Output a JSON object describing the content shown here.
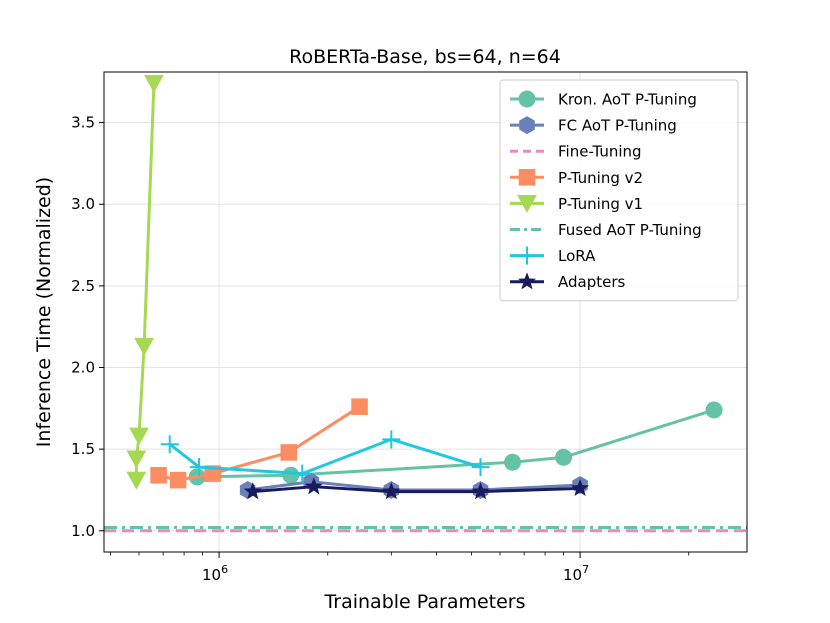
{
  "chart_data": {
    "type": "line",
    "title": "RoBERTa-Base, bs=64, n=64",
    "xlabel": "Trainable Parameters",
    "ylabel": "Inference Time (Normalized)",
    "xscale": "log",
    "xlim": [
      480000,
      29000000
    ],
    "ylim": [
      0.87,
      3.81
    ],
    "grid": true,
    "legend_position": "top-right",
    "x_ticks": [
      {
        "value": 1000000,
        "base": "10",
        "exp": "6"
      },
      {
        "value": 10000000,
        "base": "10",
        "exp": "7"
      }
    ],
    "y_ticks": [
      "1.0",
      "1.5",
      "2.0",
      "2.5",
      "3.0",
      "3.5"
    ],
    "series": [
      {
        "name": "Kron. AoT P-Tuning",
        "color": "#66c2a5",
        "marker": "circle",
        "line": "solid",
        "points": [
          [
            870000,
            1.33
          ],
          [
            1580000,
            1.34
          ],
          [
            6500000,
            1.42
          ],
          [
            9000000,
            1.45
          ],
          [
            23500000,
            1.74
          ]
        ]
      },
      {
        "name": "FC AoT P-Tuning",
        "color": "#6a80b8",
        "marker": "hexagon",
        "line": "solid",
        "points": [
          [
            1200000,
            1.25
          ],
          [
            1800000,
            1.3
          ],
          [
            3000000,
            1.25
          ],
          [
            5300000,
            1.25
          ],
          [
            10000000,
            1.28
          ]
        ]
      },
      {
        "name": "Fine-Tuning",
        "color": "#e78ac3",
        "marker": "none",
        "line": "dashed",
        "points": [
          [
            480000,
            1.0
          ],
          [
            29000000,
            1.0
          ]
        ]
      },
      {
        "name": "P-Tuning v2",
        "color": "#fc8d62",
        "marker": "square",
        "line": "solid",
        "points": [
          [
            680000,
            1.34
          ],
          [
            770000,
            1.31
          ],
          [
            960000,
            1.35
          ],
          [
            1560000,
            1.48
          ],
          [
            2450000,
            1.76
          ]
        ]
      },
      {
        "name": "P-Tuning v1",
        "color": "#a6d854",
        "marker": "triangle-down",
        "line": "solid",
        "points": [
          [
            590000,
            1.31
          ],
          [
            590000,
            1.44
          ],
          [
            600000,
            1.58
          ],
          [
            620000,
            2.13
          ],
          [
            660000,
            3.74
          ]
        ]
      },
      {
        "name": "Fused AoT P-Tuning",
        "color": "#66c2a5",
        "marker": "none",
        "line": "dashdot",
        "points": [
          [
            480000,
            1.02
          ],
          [
            29000000,
            1.02
          ]
        ]
      },
      {
        "name": "LoRA",
        "color": "#1ec8e0",
        "marker": "plus",
        "line": "solid",
        "points": [
          [
            730000,
            1.53
          ],
          [
            880000,
            1.39
          ],
          [
            1700000,
            1.35
          ],
          [
            3000000,
            1.56
          ],
          [
            5300000,
            1.39
          ]
        ]
      },
      {
        "name": "Adapters",
        "color": "#1a1a5e",
        "marker": "star",
        "line": "solid",
        "points": [
          [
            1240000,
            1.24
          ],
          [
            1830000,
            1.27
          ],
          [
            3000000,
            1.24
          ],
          [
            5300000,
            1.24
          ],
          [
            10000000,
            1.26
          ]
        ]
      }
    ]
  }
}
